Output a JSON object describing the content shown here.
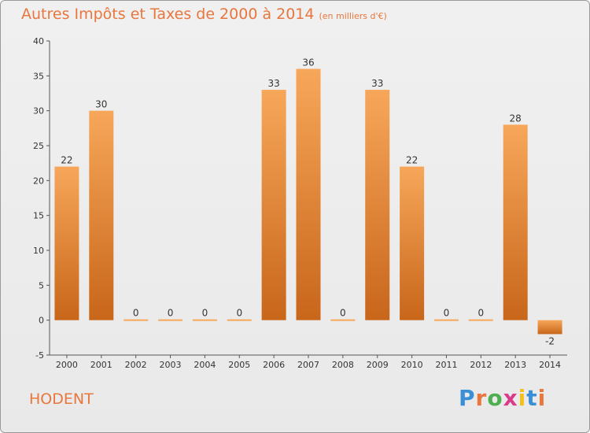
{
  "title": "Autres Impôts et Taxes de 2000 à 2014",
  "unit": "(en milliers d'€)",
  "location": "HODENT",
  "logo": {
    "letters": [
      "P",
      "r",
      "o",
      "x",
      "i",
      "t",
      "i"
    ],
    "colors": [
      "#3a8fd6",
      "#e8763d",
      "#4caf50",
      "#d93c8b",
      "#f2c21b",
      "#3a8fd6",
      "#e8763d"
    ]
  },
  "colors": {
    "bar_top": "#f7a75a",
    "bar_bottom": "#c8661a",
    "accent": "#e8763d"
  },
  "chart_data": {
    "type": "bar",
    "title": "Autres Impôts et Taxes de 2000 à 2014",
    "categories": [
      "2000",
      "2001",
      "2002",
      "2003",
      "2004",
      "2005",
      "2006",
      "2007",
      "2008",
      "2009",
      "2010",
      "2011",
      "2012",
      "2013",
      "2014"
    ],
    "values": [
      22,
      30,
      0,
      0,
      0,
      0,
      33,
      36,
      0,
      33,
      22,
      0,
      0,
      28,
      -2
    ],
    "ylim": [
      -5,
      40
    ],
    "yticks": [
      -5,
      0,
      5,
      10,
      15,
      20,
      25,
      30,
      35,
      40
    ],
    "grid": false,
    "xlabel": "",
    "ylabel": ""
  }
}
